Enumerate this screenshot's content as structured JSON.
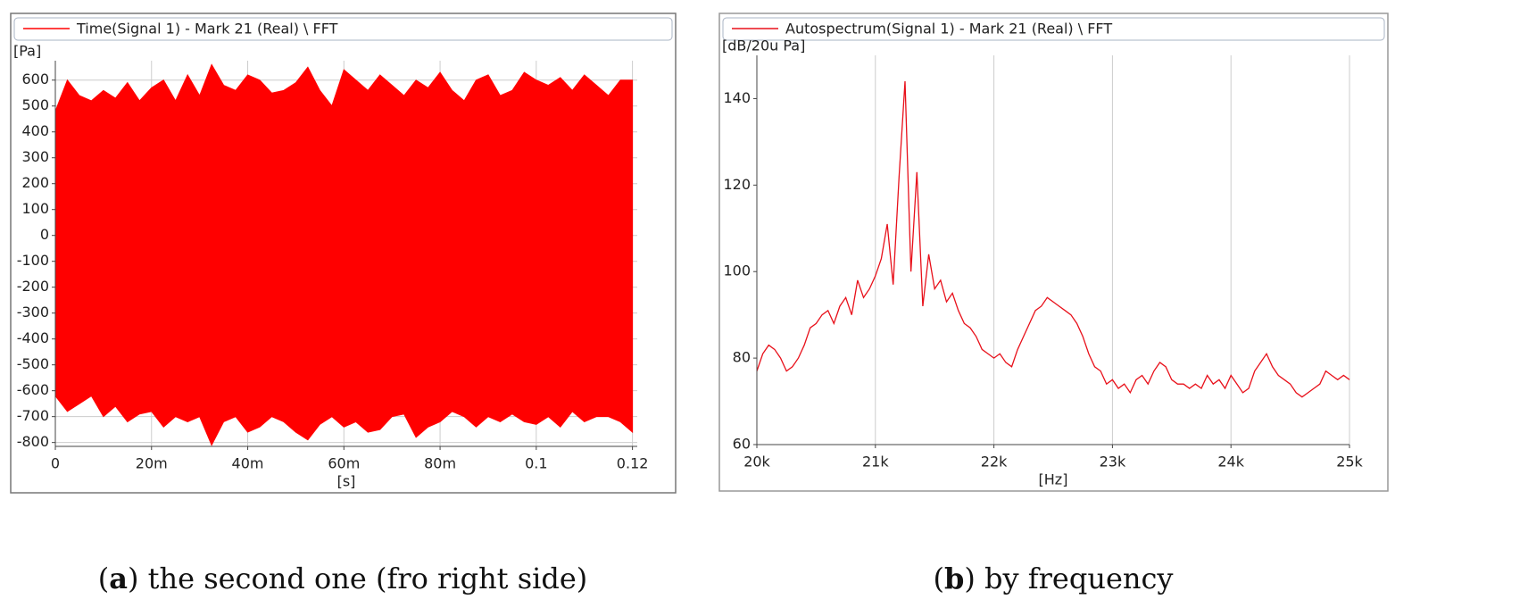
{
  "chart_data": [
    {
      "type": "area",
      "legend": "Time(Signal 1) - Mark 21 (Real) \\ FFT",
      "y_label": "[Pa]",
      "x_label": "[s]",
      "caption": [
        "(",
        "a",
        ") the second one (fro right side)"
      ],
      "x": [
        0,
        0.0025,
        0.005,
        0.0075,
        0.01,
        0.0125,
        0.015,
        0.0175,
        0.02,
        0.0225,
        0.025,
        0.0275,
        0.03,
        0.0325,
        0.035,
        0.0375,
        0.04,
        0.0425,
        0.045,
        0.0475,
        0.05,
        0.0525,
        0.055,
        0.0575,
        0.06,
        0.0625,
        0.065,
        0.0675,
        0.07,
        0.0725,
        0.075,
        0.0775,
        0.08,
        0.0825,
        0.085,
        0.0875,
        0.09,
        0.0925,
        0.095,
        0.0975,
        0.1,
        0.1025,
        0.105,
        0.1075,
        0.11,
        0.1125,
        0.115,
        0.1175,
        0.12
      ],
      "series": [
        {
          "name": "Time(Signal 1) - Mark 21 (Real) \\ FFT",
          "color": "#ff0000",
          "values": [
            480,
            600,
            540,
            520,
            560,
            530,
            590,
            520,
            570,
            600,
            520,
            620,
            540,
            660,
            580,
            560,
            620,
            600,
            550,
            560,
            590,
            650,
            560,
            500,
            640,
            600,
            560,
            620,
            580,
            540,
            600,
            570,
            630,
            560,
            520,
            600,
            620,
            540,
            560,
            630,
            600,
            580,
            610,
            560,
            620,
            580,
            540,
            600,
            600
          ],
          "lower": [
            -620,
            -680,
            -650,
            -620,
            -700,
            -660,
            -720,
            -690,
            -680,
            -740,
            -700,
            -720,
            -700,
            -810,
            -720,
            -700,
            -760,
            -740,
            -700,
            -720,
            -760,
            -790,
            -730,
            -700,
            -740,
            -720,
            -760,
            -750,
            -700,
            -690,
            -780,
            -740,
            -720,
            -680,
            -700,
            -740,
            -700,
            -720,
            -690,
            -720,
            -730,
            -700,
            -740,
            -680,
            -720,
            -700,
            -700,
            -720,
            -760
          ]
        }
      ],
      "xlim": [
        0,
        0.121
      ],
      "ylim": [
        -815,
        675
      ],
      "xticks": [
        0,
        {
          "value": 0.02,
          "label": "20m"
        },
        {
          "value": 0.04,
          "label": "40m"
        },
        {
          "value": 0.06,
          "label": "60m"
        },
        {
          "value": 0.08,
          "label": "80m"
        },
        0.1,
        0.12
      ],
      "yticks": [
        -800,
        -700,
        -600,
        -500,
        -400,
        -300,
        -200,
        -100,
        0,
        100,
        200,
        300,
        400,
        500,
        600
      ],
      "grid": "both"
    },
    {
      "type": "line",
      "legend": "Autospectrum(Signal 1) - Mark 21 (Real) \\ FFT",
      "y_label": "[dB/20u Pa]",
      "x_label": "[Hz]",
      "caption": [
        "(",
        "b",
        ") by frequency"
      ],
      "x": [
        20000,
        20050,
        20100,
        20150,
        20200,
        20250,
        20300,
        20350,
        20400,
        20450,
        20500,
        20550,
        20600,
        20650,
        20700,
        20750,
        20800,
        20850,
        20900,
        20950,
        21000,
        21050,
        21100,
        21150,
        21200,
        21250,
        21300,
        21350,
        21400,
        21450,
        21500,
        21550,
        21600,
        21650,
        21700,
        21750,
        21800,
        21850,
        21900,
        21950,
        22000,
        22050,
        22100,
        22150,
        22200,
        22250,
        22300,
        22350,
        22400,
        22450,
        22500,
        22550,
        22600,
        22650,
        22700,
        22750,
        22800,
        22850,
        22900,
        22950,
        23000,
        23050,
        23100,
        23150,
        23200,
        23250,
        23300,
        23350,
        23400,
        23450,
        23500,
        23550,
        23600,
        23650,
        23700,
        23750,
        23800,
        23850,
        23900,
        23950,
        24000,
        24050,
        24100,
        24150,
        24200,
        24250,
        24300,
        24350,
        24400,
        24450,
        24500,
        24550,
        24600,
        24650,
        24700,
        24750,
        24800,
        24850,
        24900,
        24950,
        25000
      ],
      "series": [
        {
          "name": "Autospectrum(Signal 1) - Mark 21 (Real) \\ FFT",
          "color": "#e8101a",
          "values": [
            77,
            81,
            83,
            82,
            80,
            77,
            78,
            80,
            83,
            87,
            88,
            90,
            91,
            88,
            92,
            94,
            90,
            98,
            94,
            96,
            99,
            103,
            111,
            97,
            122,
            144,
            100,
            123,
            92,
            104,
            96,
            98,
            93,
            95,
            91,
            88,
            87,
            85,
            82,
            81,
            80,
            81,
            79,
            78,
            82,
            85,
            88,
            91,
            92,
            94,
            93,
            92,
            91,
            90,
            88,
            85,
            81,
            78,
            77,
            74,
            75,
            73,
            74,
            72,
            75,
            76,
            74,
            77,
            79,
            78,
            75,
            74,
            74,
            73,
            74,
            73,
            76,
            74,
            75,
            73,
            76,
            74,
            72,
            73,
            77,
            79,
            81,
            78,
            76,
            75,
            74,
            72,
            71,
            72,
            73,
            74,
            77,
            76,
            75,
            76,
            75
          ]
        }
      ],
      "xlim": [
        20000,
        25000
      ],
      "ylim": [
        60,
        150
      ],
      "xticks": [
        {
          "value": 20000,
          "label": "20k"
        },
        {
          "value": 21000,
          "label": "21k"
        },
        {
          "value": 22000,
          "label": "22k"
        },
        {
          "value": 23000,
          "label": "23k"
        },
        {
          "value": 24000,
          "label": "24k"
        },
        {
          "value": 25000,
          "label": "25k"
        }
      ],
      "yticks": [
        60,
        80,
        100,
        120,
        140
      ],
      "grid": "x"
    }
  ]
}
